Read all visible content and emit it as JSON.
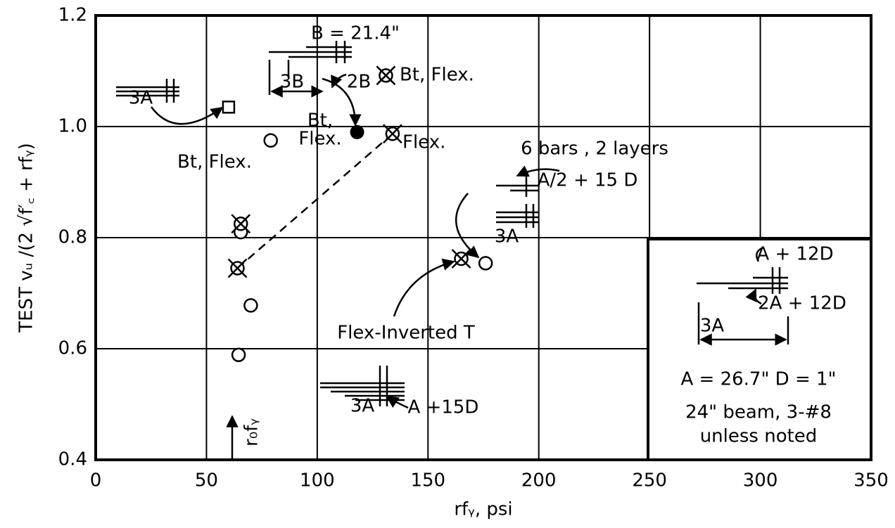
{
  "chart_data": {
    "type": "scatter",
    "xlabel": "rfᵧ,  psi",
    "ylabel": "TEST vᵤ /(2 √f′꜀ + rfᵧ)",
    "xlim": [
      0,
      350
    ],
    "xticks": [
      0,
      50,
      100,
      150,
      200,
      250,
      300,
      350
    ],
    "ylim": [
      0.4,
      1.2
    ],
    "yticks": [
      0.4,
      0.6,
      0.8,
      {
        "value": 1,
        "label": "1.0"
      },
      1.2
    ],
    "grid": true,
    "series": [
      {
        "marker": "square",
        "color": "#000000",
        "x": [
          60
        ],
        "values": [
          1.035
        ]
      },
      {
        "marker": "filled-circle",
        "color": "#000000",
        "x": [
          118
        ],
        "values": [
          0.99
        ]
      },
      {
        "marker": "open-circle",
        "color": "#000000",
        "x": [
          79,
          65.5,
          70,
          64.5,
          176
        ],
        "values": [
          0.975,
          0.81,
          0.678,
          0.589,
          0.754
        ]
      },
      {
        "marker": "crossed-circle",
        "color": "#000000",
        "x": [
          131,
          134,
          65.5,
          64,
          165
        ],
        "values": [
          1.092,
          0.987,
          0.825,
          0.745,
          0.762
        ]
      }
    ],
    "annotations": [
      "3A",
      "B = 21.4\"",
      "3B",
      "2B",
      "Bt, Flex.",
      "Bt,",
      "Flex.",
      "Flex.",
      "Bt, Flex.",
      "6 bars , 2 layers",
      "A/2 + 15 D",
      "3A",
      "Flex-Inverted T",
      "3A",
      "A +15D",
      "A + 12D",
      "2A + 12D",
      "3A",
      "A = 26.7\"   D = 1\"",
      "24\" beam, 3-#8",
      "unless noted",
      "r₀fᵧ"
    ]
  }
}
